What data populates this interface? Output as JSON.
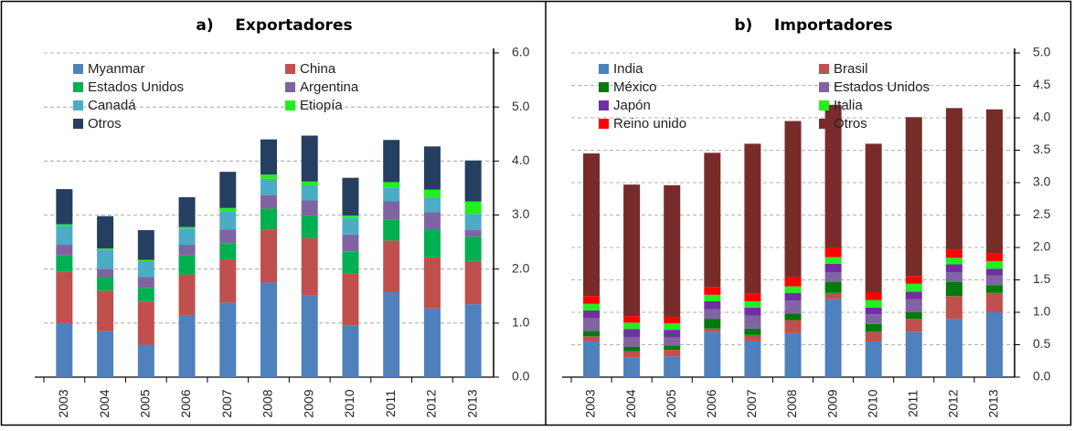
{
  "chart_data": [
    {
      "type": "stacked-bar",
      "title": "a)    Exportadores",
      "categories": [
        "2003",
        "2004",
        "2005",
        "2006",
        "2007",
        "2008",
        "2009",
        "2010",
        "2011",
        "2012",
        "2013"
      ],
      "series": [
        {
          "name": "Myanmar",
          "color": "#4f81bd",
          "values": [
            1.0,
            0.85,
            0.6,
            1.15,
            1.38,
            1.75,
            1.52,
            0.95,
            1.58,
            1.27,
            1.35
          ]
        },
        {
          "name": "China",
          "color": "#c0504d",
          "values": [
            0.95,
            0.75,
            0.8,
            0.75,
            0.8,
            0.97,
            1.05,
            0.97,
            0.95,
            0.95,
            0.8
          ]
        },
        {
          "name": "Estados Unidos",
          "color": "#00b050",
          "values": [
            0.3,
            0.25,
            0.25,
            0.35,
            0.3,
            0.4,
            0.42,
            0.4,
            0.38,
            0.5,
            0.45
          ]
        },
        {
          "name": "Argentina",
          "color": "#8064a2",
          "values": [
            0.2,
            0.15,
            0.2,
            0.2,
            0.25,
            0.25,
            0.28,
            0.32,
            0.35,
            0.33,
            0.12
          ]
        },
        {
          "name": "Canadá",
          "color": "#4bacc6",
          "values": [
            0.35,
            0.35,
            0.3,
            0.3,
            0.33,
            0.3,
            0.28,
            0.3,
            0.25,
            0.27,
            0.3
          ]
        },
        {
          "name": "Etiopía",
          "color": "#22ee22",
          "values": [
            0.03,
            0.03,
            0.02,
            0.03,
            0.07,
            0.08,
            0.07,
            0.05,
            0.1,
            0.15,
            0.23
          ]
        },
        {
          "name": "Otros",
          "color": "#243f60",
          "values": [
            0.65,
            0.6,
            0.55,
            0.55,
            0.67,
            0.65,
            0.85,
            0.7,
            0.78,
            0.8,
            0.76
          ]
        }
      ],
      "ylim": [
        0,
        6
      ],
      "yticks": [
        {
          "value": 0,
          "label": "0.0"
        },
        {
          "value": 1,
          "label": "1.0"
        },
        {
          "value": 2,
          "label": "2.0"
        },
        {
          "value": 3,
          "label": "3.0"
        },
        {
          "value": 4,
          "label": "4.0"
        },
        {
          "value": 5,
          "label": "5.0"
        },
        {
          "value": 6,
          "label": "6.0"
        }
      ],
      "grid": true,
      "legend": "upper-left"
    },
    {
      "type": "stacked-bar",
      "title": "b)    Importadores",
      "categories": [
        "2003",
        "2004",
        "2005",
        "2006",
        "2007",
        "2008",
        "2009",
        "2010",
        "2011",
        "2012",
        "2013"
      ],
      "series": [
        {
          "name": "India",
          "color": "#4f81bd",
          "values": [
            0.55,
            0.3,
            0.32,
            0.7,
            0.55,
            0.68,
            1.2,
            0.55,
            0.7,
            0.9,
            1.0
          ]
        },
        {
          "name": "Brasil",
          "color": "#c0504d",
          "values": [
            0.08,
            0.1,
            0.1,
            0.05,
            0.1,
            0.2,
            0.1,
            0.15,
            0.2,
            0.35,
            0.3
          ]
        },
        {
          "name": "México",
          "color": "#007a0a",
          "values": [
            0.08,
            0.07,
            0.07,
            0.15,
            0.1,
            0.1,
            0.17,
            0.12,
            0.1,
            0.22,
            0.12
          ]
        },
        {
          "name": "Estados Unidos",
          "color": "#8064a2",
          "values": [
            0.2,
            0.15,
            0.12,
            0.15,
            0.2,
            0.2,
            0.15,
            0.15,
            0.2,
            0.15,
            0.15
          ]
        },
        {
          "name": "Japón",
          "color": "#7030a0",
          "values": [
            0.12,
            0.12,
            0.12,
            0.12,
            0.12,
            0.12,
            0.13,
            0.1,
            0.12,
            0.12,
            0.1
          ]
        },
        {
          "name": "Italia",
          "color": "#22ee22",
          "values": [
            0.1,
            0.1,
            0.1,
            0.1,
            0.1,
            0.1,
            0.1,
            0.12,
            0.12,
            0.1,
            0.12
          ]
        },
        {
          "name": "Reino unido",
          "color": "#ff0000",
          "values": [
            0.12,
            0.1,
            0.1,
            0.12,
            0.12,
            0.15,
            0.15,
            0.12,
            0.12,
            0.12,
            0.12
          ]
        },
        {
          "name": "Otros",
          "color": "#772c2a",
          "values": [
            2.2,
            2.03,
            2.03,
            2.07,
            2.31,
            2.4,
            2.2,
            2.29,
            2.45,
            2.19,
            2.22
          ]
        }
      ],
      "ylim": [
        0,
        5
      ],
      "yticks": [
        {
          "value": 0,
          "label": "0.0"
        },
        {
          "value": 0.5,
          "label": "0.5"
        },
        {
          "value": 1,
          "label": "1.0"
        },
        {
          "value": 1.5,
          "label": "1.5"
        },
        {
          "value": 2,
          "label": "2.0"
        },
        {
          "value": 2.5,
          "label": "2.5"
        },
        {
          "value": 3,
          "label": "3.0"
        },
        {
          "value": 3.5,
          "label": "3.5"
        },
        {
          "value": 4,
          "label": "4.0"
        },
        {
          "value": 4.5,
          "label": "4.5"
        },
        {
          "value": 5,
          "label": "5.0"
        }
      ],
      "grid": true,
      "legend": "upper-left"
    }
  ]
}
